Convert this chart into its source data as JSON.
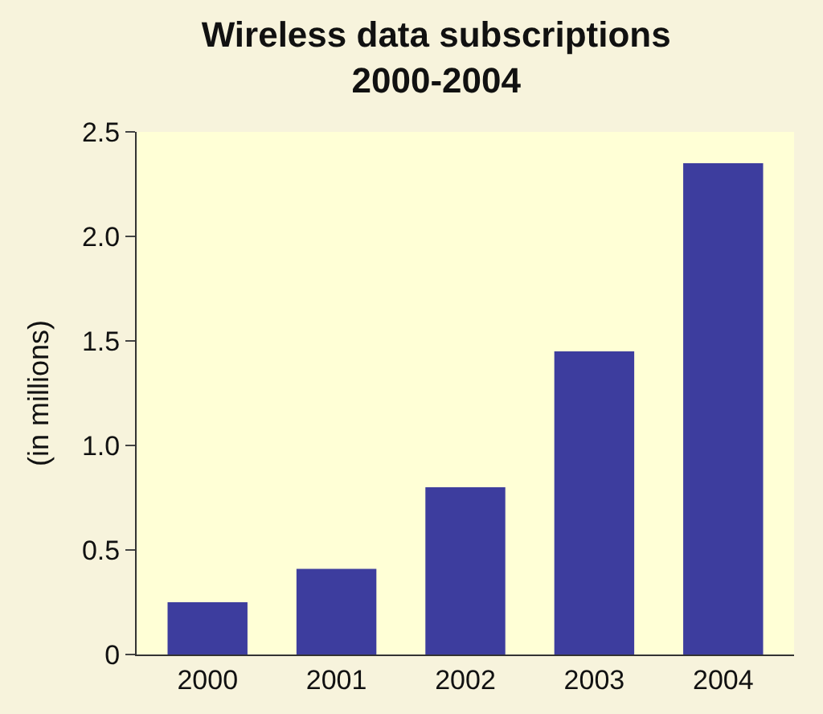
{
  "chart_data": {
    "type": "bar",
    "title": "Wireless data subscriptions\n2000-2004",
    "ylabel": "(in millions)",
    "categories": [
      "2000",
      "2001",
      "2002",
      "2003",
      "2004"
    ],
    "values": [
      0.25,
      0.41,
      0.8,
      1.45,
      2.35
    ],
    "color": "#3d3d9e",
    "ylim": [
      0,
      2.5
    ],
    "yticks": [
      0,
      0.5,
      {
        "value": 1,
        "label": "1.0"
      },
      1.5,
      {
        "value": 2,
        "label": "2.0"
      },
      2.5
    ],
    "grid": false
  }
}
